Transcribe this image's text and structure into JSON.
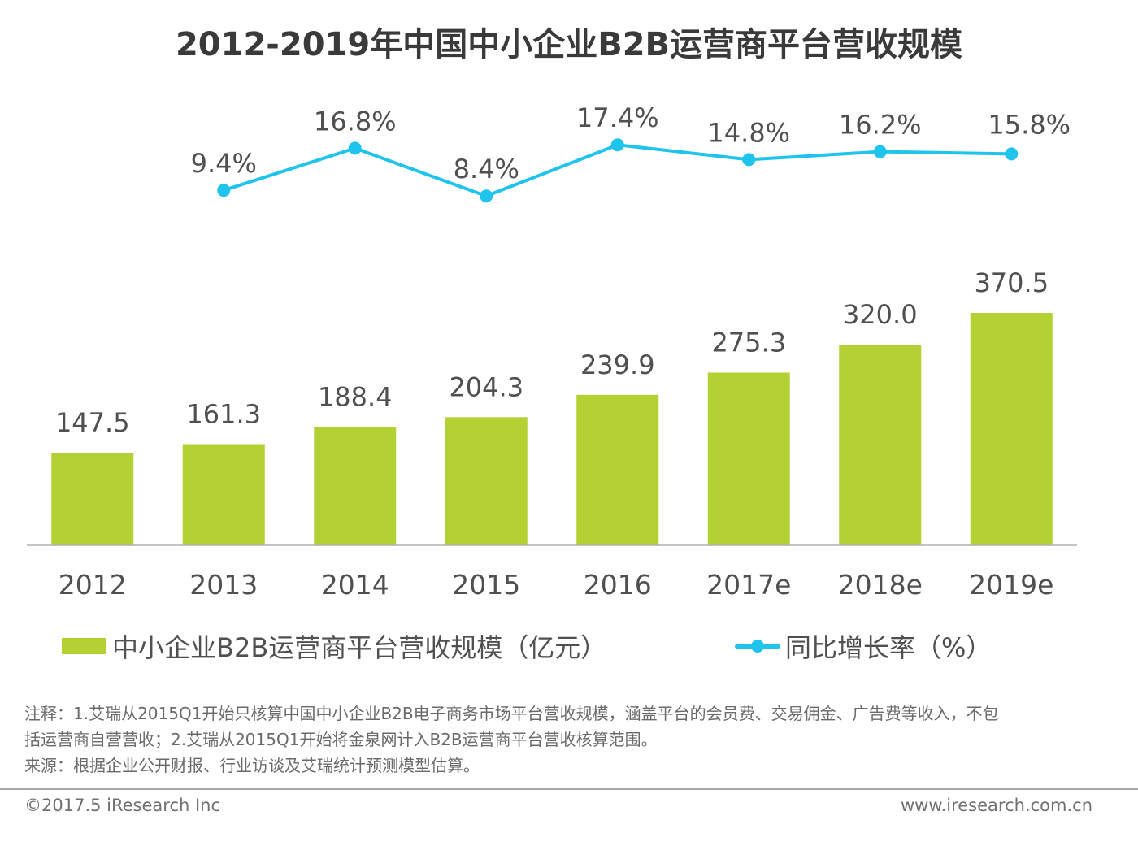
{
  "title": "2012-2019年中国中小企业B2B运营商平台营收规模",
  "colors": {
    "bar": "#b3d133",
    "line": "#1fc4ec",
    "axis": "#b0b0b0",
    "text": "#505050"
  },
  "legend": {
    "bar_label": "中小企业B2B运营商平台营收规模（亿元）",
    "line_label": "同比增长率（%）"
  },
  "notes": {
    "line1": "注释：1.艾瑞从2015Q1开始只核算中国中小企业B2B电子商务市场平台营收规模，涵盖平台的会员费、交易佣金、广告费等收入，不包",
    "line2": "括运营商自营营收；2.艾瑞从2015Q1开始将金泉网计入B2B运营商平台营收核算范围。",
    "line3": "来源：根据企业公开财报、行业访谈及艾瑞统计预测模型估算。"
  },
  "footer": {
    "copyright": "©2017.5 iResearch Inc",
    "website": "www.iresearch.com.cn"
  },
  "chart_data": {
    "type": "bar",
    "title": "2012-2019年中国中小企业B2B运营商平台营收规模",
    "categories": [
      "2012",
      "2013",
      "2014",
      "2015",
      "2016",
      "2017e",
      "2018e",
      "2019e"
    ],
    "series": [
      {
        "name": "中小企业B2B运营商平台营收规模（亿元）",
        "type": "bar",
        "values": [
          147.5,
          161.3,
          188.4,
          204.3,
          239.9,
          275.3,
          320.0,
          370.5
        ],
        "labels": [
          "147.5",
          "161.3",
          "188.4",
          "204.3",
          "239.9",
          "275.3",
          "320.0",
          "370.5"
        ]
      },
      {
        "name": "同比增长率（%）",
        "type": "line",
        "x": [
          "2013",
          "2014",
          "2015",
          "2016",
          "2017e",
          "2018e",
          "2019e"
        ],
        "values": [
          9.4,
          16.8,
          8.4,
          17.4,
          14.8,
          16.2,
          15.8
        ],
        "labels": [
          "9.4%",
          "16.8%",
          "8.4%",
          "17.4%",
          "14.8%",
          "16.2%",
          "15.8%"
        ]
      }
    ],
    "xlabel": "",
    "ylabel": "",
    "ylim": [
      0,
      370.5
    ],
    "grid": false,
    "legend_position": "bottom"
  }
}
